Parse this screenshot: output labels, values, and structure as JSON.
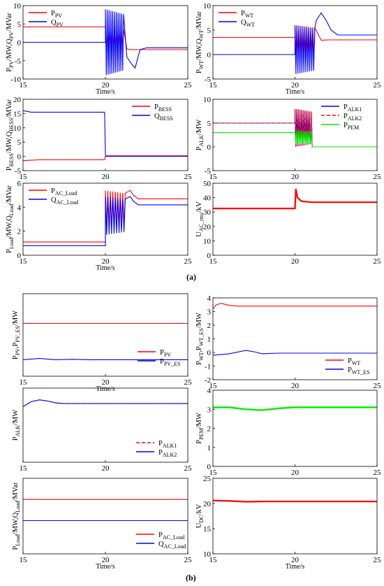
{
  "panel_labels": [
    "(a)",
    "(b)"
  ],
  "colors": {
    "red": "#ff0000",
    "blue": "#0000ff",
    "green": "#00ee00",
    "olive": "#8b8b4a",
    "purple": "#7a2a7a"
  },
  "chart_data": [
    {
      "type": "line",
      "group": "a",
      "ylabel_main": "P",
      "ylabel_sub1": "PV",
      "ylabel_mid": "/MW,Q",
      "ylabel_sub2": "PV",
      "ylabel_tail": "/MVar",
      "xlabel": "Time/s",
      "xlim": [
        15,
        25
      ],
      "ylim": [
        -10,
        10
      ],
      "xticks": [
        "15",
        "20",
        "25"
      ],
      "yticks": [
        "-10",
        "-5",
        "0",
        "5",
        "10"
      ],
      "legend_position": "top-left",
      "series": [
        {
          "name": "P",
          "sub": "PV",
          "color": "#ff0000",
          "dash": false,
          "x": [
            15,
            20,
            20.1,
            20.6,
            21.0,
            21.3,
            21.6,
            22,
            25
          ],
          "y": [
            4.2,
            4.2,
            0,
            -1,
            -1.5,
            -1.8,
            -2.0,
            -2.0,
            -2.0
          ],
          "osc": {
            "from": 20.0,
            "to": 21.1,
            "amp": 3,
            "center": 1,
            "n": 10
          }
        },
        {
          "name": "Q",
          "sub": "PV",
          "color": "#0000ff",
          "dash": false,
          "x": [
            15,
            20,
            20.1,
            21.0,
            21.3,
            21.6,
            21.8,
            22.1,
            22.5,
            25
          ],
          "y": [
            0,
            0,
            0,
            -2,
            -4,
            -6,
            -7,
            -2,
            -1.5,
            -1.5
          ],
          "osc": {
            "from": 20.0,
            "to": 21.1,
            "amp": 9,
            "center": 0,
            "n": 10
          }
        }
      ]
    },
    {
      "type": "line",
      "group": "a",
      "ylabel_main": "P",
      "ylabel_sub1": "WT",
      "ylabel_mid": "/MW,Q",
      "ylabel_sub2": "WT",
      "ylabel_tail": "/MVar",
      "xlabel": "Time/s",
      "xlim": [
        15,
        25
      ],
      "ylim": [
        -5,
        10
      ],
      "xticks": [
        "15",
        "20",
        "25"
      ],
      "yticks": [
        "-5",
        "0",
        "5",
        "10"
      ],
      "legend_position": "top-left",
      "series": [
        {
          "name": "P",
          "sub": "WT",
          "color": "#ff0000",
          "dash": false,
          "x": [
            15,
            20,
            21.2,
            21.6,
            22,
            25
          ],
          "y": [
            3.5,
            3.5,
            2.5,
            2.9,
            3,
            3
          ],
          "osc": {
            "from": 20.0,
            "to": 21.2,
            "amp": 3,
            "center": 3,
            "n": 10
          }
        },
        {
          "name": "Q",
          "sub": "WT",
          "color": "#0000ff",
          "dash": false,
          "x": [
            15,
            20,
            21.0,
            21.3,
            21.6,
            21.9,
            22.2,
            22.6,
            25
          ],
          "y": [
            0,
            0,
            5,
            7,
            8.5,
            7,
            5,
            4,
            4
          ],
          "osc": {
            "from": 20.0,
            "to": 21.2,
            "amp": 5,
            "center": 1,
            "n": 10
          }
        }
      ]
    },
    {
      "type": "line",
      "group": "a",
      "ylabel_main": "P",
      "ylabel_sub1": "BESS",
      "ylabel_mid": "/MW,Q",
      "ylabel_sub2": "BESS",
      "ylabel_tail": "/MVar",
      "xlabel": "",
      "xlim": [
        15,
        25
      ],
      "ylim": [
        -5,
        20
      ],
      "xticks": [
        "15",
        "20",
        "25"
      ],
      "yticks": [
        "-5",
        "0",
        "5",
        "10",
        "15",
        "20"
      ],
      "legend_position": "top-right",
      "series": [
        {
          "name": "P",
          "sub": "BESS",
          "color": "#ff0000",
          "dash": false,
          "x": [
            15,
            16,
            19.95,
            20,
            20.05,
            25
          ],
          "y": [
            -1.5,
            -1.2,
            -1.2,
            0,
            0.2,
            0.2
          ]
        },
        {
          "name": "Q",
          "sub": "BESS",
          "color": "#0000ff",
          "dash": false,
          "x": [
            15,
            15.5,
            19.95,
            20,
            20.05,
            25
          ],
          "y": [
            16,
            15.5,
            15.5,
            0,
            0,
            0
          ]
        }
      ]
    },
    {
      "type": "line",
      "group": "a",
      "ylabel_main": "P",
      "ylabel_sub1": "ALK",
      "ylabel_mid": "/MW",
      "ylabel_sub2": "",
      "ylabel_tail": "",
      "xlabel": "",
      "xlim": [
        15,
        25
      ],
      "ylim": [
        -5,
        10
      ],
      "xticks": [
        "15",
        "20",
        "25"
      ],
      "yticks": [
        "-5",
        "0",
        "5",
        "10"
      ],
      "legend_position": "top-right",
      "series": [
        {
          "name": "P",
          "sub": "ALK1",
          "color": "#0000ff",
          "dash": false,
          "x": [
            15,
            20,
            21.0,
            21.05,
            25
          ],
          "y": [
            5,
            5,
            3,
            0,
            0
          ],
          "osc": {
            "from": 20.0,
            "to": 21.0,
            "amp": 4,
            "center": 4,
            "n": 10
          }
        },
        {
          "name": "P",
          "sub": "ALK2",
          "color": "#ff0000",
          "dash": true,
          "x": [
            15,
            20,
            21.0,
            21.05,
            25
          ],
          "y": [
            5,
            5,
            3,
            0,
            0
          ],
          "osc": {
            "from": 20.0,
            "to": 21.0,
            "amp": 4,
            "center": 4,
            "n": 10
          }
        },
        {
          "name": "P",
          "sub": "PEM",
          "color": "#00ee00",
          "dash": false,
          "x": [
            15,
            20,
            21.0,
            21.05,
            25
          ],
          "y": [
            3,
            3,
            2,
            0,
            0
          ],
          "osc": {
            "from": 20.0,
            "to": 21.0,
            "amp": 1.5,
            "center": 2,
            "n": 10
          }
        }
      ]
    },
    {
      "type": "line",
      "group": "a",
      "ylabel_main": "P",
      "ylabel_sub1": "Load",
      "ylabel_mid": "/MW,Q",
      "ylabel_sub2": "Load",
      "ylabel_tail": "/MVar",
      "xlabel": "Time/s",
      "xlim": [
        15,
        25
      ],
      "ylim": [
        0,
        6
      ],
      "xticks": [
        "15",
        "20",
        "25"
      ],
      "yticks": [
        "0",
        "2",
        "4",
        "6"
      ],
      "legend_position": "top-left",
      "series": [
        {
          "name": "P",
          "sub": "AC_Load",
          "color": "#ff0000",
          "dash": false,
          "x": [
            15,
            20,
            20.1,
            21.2,
            21.5,
            21.7,
            22.0,
            25
          ],
          "y": [
            1.1,
            1.1,
            3.2,
            5.0,
            5.4,
            5.0,
            4.7,
            4.7
          ],
          "osc": {
            "from": 20.0,
            "to": 21.2,
            "amp": 1.6,
            "center": 3.8,
            "n": 8
          }
        },
        {
          "name": "Q",
          "sub": "AC_Load",
          "color": "#0000ff",
          "dash": false,
          "x": [
            15,
            20,
            20.1,
            21.2,
            21.5,
            21.7,
            22.0,
            25
          ],
          "y": [
            0.8,
            0.8,
            2.8,
            4.5,
            4.9,
            4.5,
            4.2,
            4.2
          ],
          "osc": {
            "from": 20.0,
            "to": 21.2,
            "amp": 1.6,
            "center": 3.3,
            "n": 8
          }
        }
      ]
    },
    {
      "type": "line",
      "group": "a",
      "ylabel_main": "U",
      "ylabel_sub1": "AC_rms",
      "ylabel_mid": "/kV",
      "ylabel_sub2": "",
      "ylabel_tail": "",
      "xlabel": "",
      "xlim": [
        15,
        25
      ],
      "ylim": [
        0,
        50
      ],
      "xticks": [
        "15",
        "20",
        "25"
      ],
      "yticks": [
        "0",
        "10",
        "20",
        "30",
        "40",
        "50"
      ],
      "legend_position": "none",
      "series": [
        {
          "name": "",
          "sub": "",
          "color": "#ff0000",
          "dash": false,
          "thick": 2.2,
          "x": [
            15,
            20,
            20.05,
            20.15,
            20.4,
            21,
            25
          ],
          "y": [
            32.5,
            32.5,
            46,
            40,
            37.5,
            36.8,
            36.8
          ]
        }
      ]
    },
    {
      "type": "line",
      "group": "b",
      "ylabel_main": "P",
      "ylabel_sub1": "PV",
      "ylabel_mid": ",P",
      "ylabel_sub2": "PV_ES",
      "ylabel_tail": "/MW",
      "xlabel": "Time/s",
      "xlim": [
        15,
        25
      ],
      "ylim": [
        -2,
        8
      ],
      "xticks": [
        "15",
        "20",
        "25"
      ],
      "yticks": [],
      "legend_position": "right",
      "series": [
        {
          "name": "P",
          "sub": "PV",
          "color": "#ff0000",
          "dash": false,
          "x": [
            15,
            25
          ],
          "y": [
            4.4,
            4.4
          ]
        },
        {
          "name": "P",
          "sub": "PV_ES",
          "color": "#0000ff",
          "dash": false,
          "x": [
            15,
            16,
            17,
            18,
            19,
            20,
            25
          ],
          "y": [
            0,
            0.15,
            0,
            0.05,
            0,
            0,
            0
          ]
        }
      ]
    },
    {
      "type": "line",
      "group": "b",
      "ylabel_main": "P",
      "ylabel_sub1": "WT",
      "ylabel_mid": ",P",
      "ylabel_sub2": "WT_ES",
      "ylabel_tail": "/MW",
      "xlabel": "",
      "xlim": [
        15,
        25
      ],
      "ylim": [
        -2,
        4
      ],
      "xticks": [
        "15",
        "20",
        "25"
      ],
      "yticks": [
        "-2",
        "-1",
        "0",
        "1",
        "2",
        "3",
        "4"
      ],
      "legend_position": "bottom-right",
      "series": [
        {
          "name": "P",
          "sub": "WT",
          "color": "#ff0000",
          "dash": false,
          "x": [
            15,
            15.2,
            15.5,
            16,
            16.5,
            17,
            25
          ],
          "y": [
            3.2,
            3.5,
            3.6,
            3.45,
            3.4,
            3.4,
            3.4
          ]
        },
        {
          "name": "P",
          "sub": "WT_ES",
          "color": "#0000ff",
          "dash": false,
          "x": [
            15,
            16,
            17,
            17.5,
            18,
            19,
            25
          ],
          "y": [
            -0.2,
            -0.1,
            0.15,
            0.05,
            -0.1,
            -0.05,
            -0.05
          ]
        }
      ]
    },
    {
      "type": "line",
      "group": "b",
      "ylabel_main": "P",
      "ylabel_sub1": "ALK",
      "ylabel_mid": "/MW",
      "ylabel_sub2": "",
      "ylabel_tail": "",
      "xlabel": "",
      "xlim": [
        15,
        25
      ],
      "ylim": [
        0,
        6
      ],
      "xticks": [
        "15",
        "20",
        "25"
      ],
      "yticks": [],
      "legend_position": "bottom-right",
      "series": [
        {
          "name": "P",
          "sub": "ALK1",
          "color": "#ff0000",
          "dash": true,
          "x": [
            15,
            15.5,
            16,
            16.5,
            17,
            17.5,
            18,
            25
          ],
          "y": [
            4.5,
            4.9,
            5.05,
            4.95,
            4.8,
            4.75,
            4.75,
            4.75
          ]
        },
        {
          "name": "P",
          "sub": "ALK2",
          "color": "#0000ff",
          "dash": false,
          "x": [
            15,
            15.5,
            16,
            16.5,
            17,
            17.5,
            18,
            25
          ],
          "y": [
            4.5,
            4.9,
            5.05,
            4.95,
            4.8,
            4.75,
            4.75,
            4.75
          ]
        }
      ]
    },
    {
      "type": "line",
      "group": "b",
      "ylabel_main": "P",
      "ylabel_sub1": "PEM",
      "ylabel_mid": "/MW",
      "ylabel_sub2": "",
      "ylabel_tail": "",
      "xlabel": "",
      "xlim": [
        15,
        25
      ],
      "ylim": [
        0,
        4
      ],
      "xticks": [
        "15",
        "20",
        "25"
      ],
      "yticks": [
        "0",
        "1",
        "2",
        "3",
        "4"
      ],
      "legend_position": "none",
      "series": [
        {
          "name": "",
          "sub": "",
          "color": "#00ee00",
          "dash": false,
          "thick": 2.4,
          "x": [
            15,
            16,
            17,
            18,
            19,
            20,
            25
          ],
          "y": [
            3.1,
            3.1,
            3.0,
            2.95,
            3.05,
            3.1,
            3.1
          ]
        }
      ]
    },
    {
      "type": "line",
      "group": "b",
      "ylabel_main": "P",
      "ylabel_sub1": "Load",
      "ylabel_mid": "/MW,Q",
      "ylabel_sub2": "Load",
      "ylabel_tail": "/MVar",
      "xlabel": "Time/s",
      "xlim": [
        15,
        25
      ],
      "ylim": [
        0.4,
        1.4
      ],
      "xticks": [
        "15",
        "20",
        "25"
      ],
      "yticks": [],
      "legend_position": "bottom-right",
      "series": [
        {
          "name": "P",
          "sub": "AC_Load",
          "color": "#ff0000",
          "dash": false,
          "x": [
            15,
            25
          ],
          "y": [
            1.12,
            1.12
          ]
        },
        {
          "name": "Q",
          "sub": "AC_Load",
          "color": "#0000ff",
          "dash": false,
          "x": [
            15,
            25
          ],
          "y": [
            0.84,
            0.84
          ]
        }
      ]
    },
    {
      "type": "line",
      "group": "b",
      "ylabel_main": "U",
      "ylabel_sub1": "DC",
      "ylabel_mid": "/kV",
      "ylabel_sub2": "",
      "ylabel_tail": "",
      "xlabel": "Time/s",
      "xlim": [
        15,
        25
      ],
      "ylim": [
        10,
        25
      ],
      "xticks": [
        "15",
        "20",
        "25"
      ],
      "yticks": [
        "10",
        "15",
        "20",
        "25"
      ],
      "legend_position": "none",
      "series": [
        {
          "name": "",
          "sub": "",
          "color": "#ff0000",
          "dash": false,
          "thick": 2.2,
          "x": [
            15,
            16,
            17,
            18,
            19,
            20,
            25
          ],
          "y": [
            20.6,
            20.5,
            20.35,
            20.4,
            20.4,
            20.4,
            20.4
          ]
        }
      ]
    }
  ]
}
